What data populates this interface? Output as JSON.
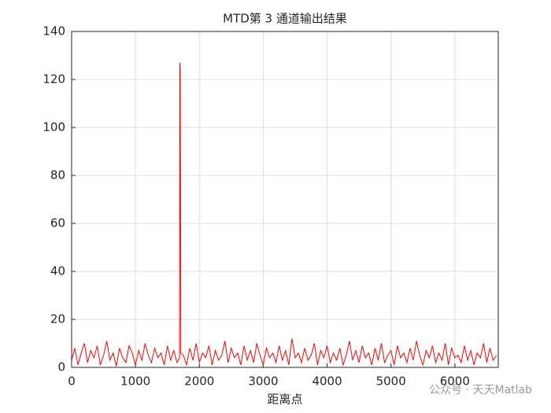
{
  "chart_data": {
    "type": "line",
    "title": "MTD第 3 通道输出结果",
    "xlabel": "距离点",
    "watermark": "公众号 · 天天Matlab",
    "color": "#ff0000",
    "grid": true,
    "xlim": [
      0,
      6680
    ],
    "ylim": [
      0,
      140
    ],
    "xticks": [
      0,
      1000,
      2000,
      3000,
      4000,
      5000,
      6000
    ],
    "yticks": [
      0,
      20,
      40,
      60,
      80,
      100,
      120,
      140
    ],
    "x": [
      0,
      50,
      100,
      150,
      200,
      250,
      300,
      350,
      400,
      450,
      500,
      550,
      600,
      650,
      700,
      750,
      800,
      850,
      900,
      950,
      1000,
      1050,
      1100,
      1150,
      1200,
      1250,
      1300,
      1350,
      1400,
      1450,
      1500,
      1550,
      1600,
      1650,
      1690,
      1695,
      1700,
      1710,
      1750,
      1800,
      1850,
      1900,
      1950,
      2000,
      2050,
      2100,
      2150,
      2200,
      2250,
      2300,
      2350,
      2400,
      2450,
      2500,
      2550,
      2600,
      2650,
      2700,
      2750,
      2800,
      2850,
      2900,
      2950,
      3000,
      3050,
      3100,
      3150,
      3200,
      3250,
      3300,
      3350,
      3400,
      3450,
      3500,
      3550,
      3600,
      3650,
      3700,
      3750,
      3800,
      3850,
      3900,
      3950,
      4000,
      4050,
      4100,
      4150,
      4200,
      4250,
      4300,
      4350,
      4400,
      4450,
      4500,
      4550,
      4600,
      4650,
      4700,
      4750,
      4800,
      4850,
      4900,
      4950,
      5000,
      5050,
      5100,
      5150,
      5200,
      5250,
      5300,
      5350,
      5400,
      5450,
      5500,
      5550,
      5600,
      5650,
      5700,
      5750,
      5800,
      5850,
      5900,
      5950,
      6000,
      6050,
      6100,
      6150,
      6200,
      6250,
      6300,
      6350,
      6400,
      6450,
      6500,
      6550,
      6600,
      6650
    ],
    "values": [
      3,
      8,
      1,
      6,
      10,
      2,
      7,
      4,
      9,
      1,
      5,
      11,
      3,
      6,
      0.5,
      8,
      4,
      2,
      9,
      6,
      1,
      7,
      3,
      10,
      5,
      2,
      8,
      4,
      6,
      1,
      9,
      3,
      7,
      2,
      4,
      127,
      124,
      6,
      5,
      1,
      8,
      3,
      10,
      2,
      6,
      4,
      9,
      1,
      7,
      3,
      5,
      11,
      2,
      8,
      4,
      6,
      1,
      9,
      3,
      7,
      2,
      10,
      5,
      1,
      8,
      4,
      6,
      2,
      9,
      3,
      7,
      1,
      12,
      4,
      6,
      2,
      8,
      3,
      5,
      10,
      1,
      7,
      4,
      9,
      2,
      6,
      3,
      8,
      1,
      5,
      11,
      3,
      7,
      2,
      9,
      4,
      6,
      1,
      8,
      3,
      10,
      2,
      5,
      7,
      1,
      9,
      4,
      6,
      2,
      8,
      3,
      11,
      5,
      1,
      7,
      4,
      9,
      2,
      6,
      3,
      10,
      1,
      8,
      4,
      5,
      2,
      9,
      3,
      7,
      1,
      6,
      4,
      10,
      2,
      8,
      3,
      5
    ]
  }
}
